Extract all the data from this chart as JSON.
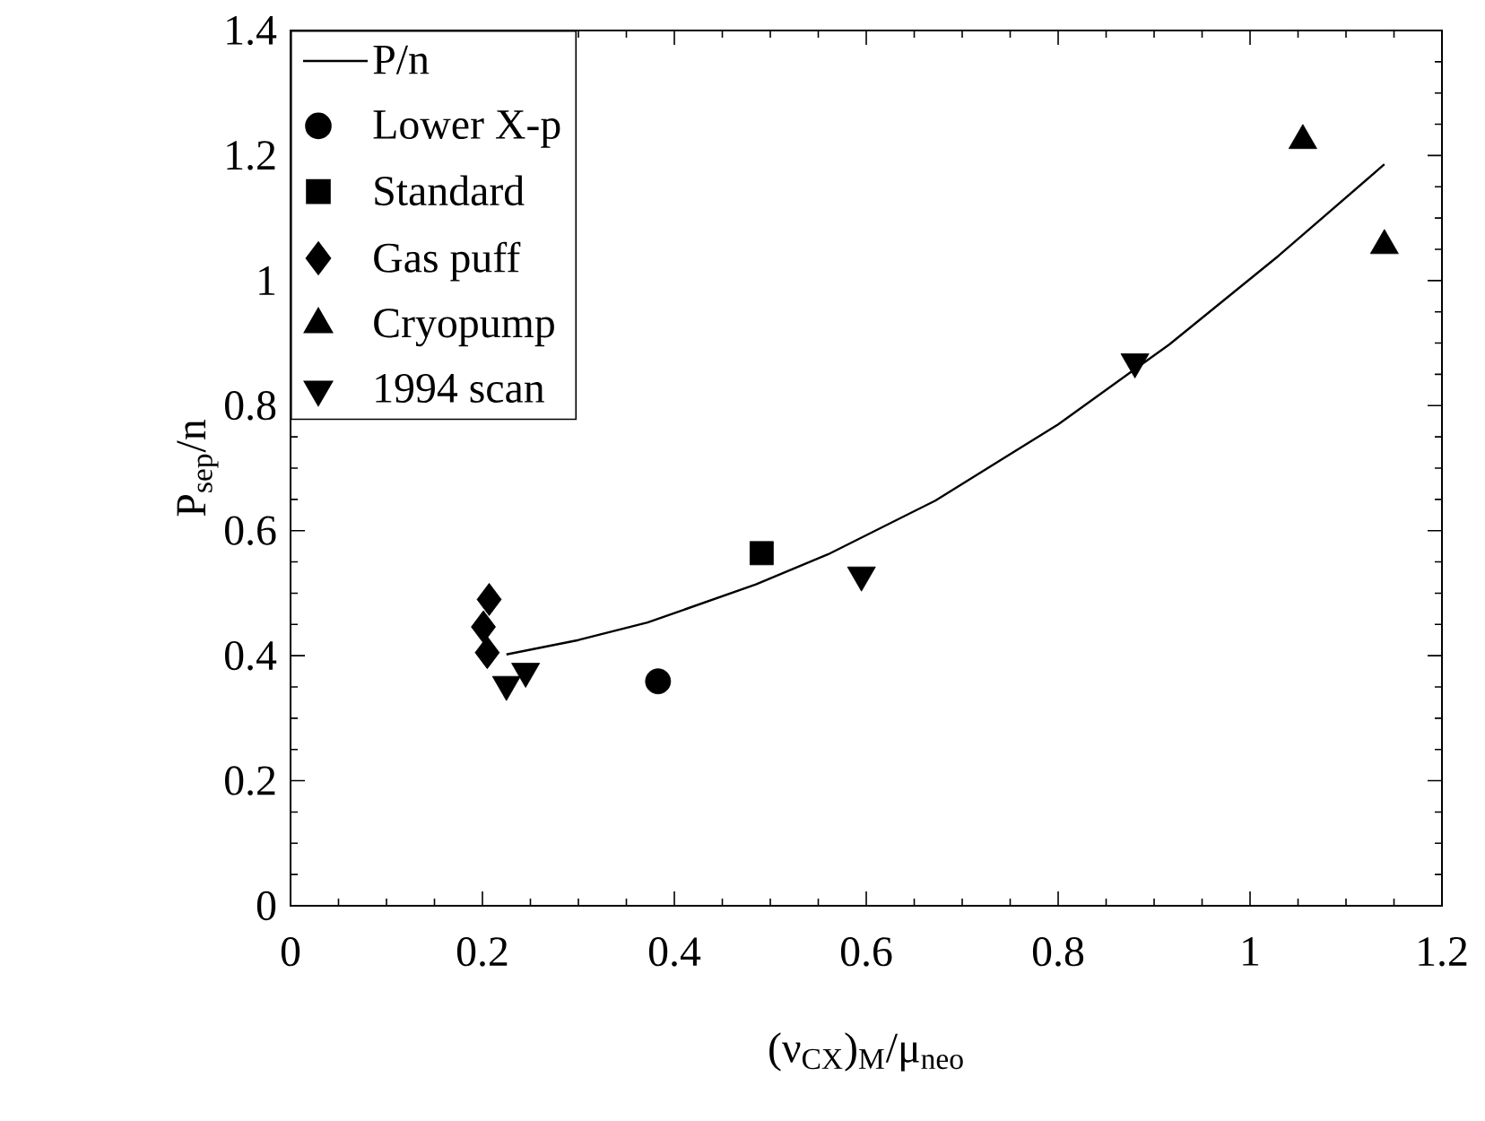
{
  "chart_data": {
    "type": "scatter",
    "xlabel": "(ν$_{CX}$)$_{M}$/μ$_{neo}$",
    "ylabel": "P$_{sep}$/n",
    "xlim": [
      0,
      1.2
    ],
    "ylim": [
      0,
      1.4
    ],
    "xticks": [
      0,
      0.2,
      0.4,
      0.6,
      0.8,
      1,
      1.2
    ],
    "yticks": [
      0,
      0.2,
      0.4,
      0.6,
      0.8,
      1,
      1.2,
      1.4
    ],
    "grid": false,
    "legend": "top left",
    "series": [
      {
        "name": "P/n",
        "type": "line",
        "color": "#000000",
        "marker": "none",
        "line_style": "solid",
        "x": [
          0.225,
          0.3,
          0.372,
          0.485,
          0.56,
          0.672,
          0.8,
          0.916,
          1.03,
          1.14
        ],
        "values": [
          0.402,
          0.425,
          0.453,
          0.514,
          0.562,
          0.648,
          0.77,
          0.898,
          1.04,
          1.186
        ]
      },
      {
        "name": "Lower X-p",
        "color": "#000000",
        "marker": "circle",
        "x": [
          0.383
        ],
        "values": [
          0.359
        ]
      },
      {
        "name": "Standard",
        "color": "#000000",
        "marker": "square",
        "x": [
          0.491
        ],
        "values": [
          0.564
        ]
      },
      {
        "name": "Gas puff",
        "color": "#000000",
        "marker": "diamond",
        "x": [
          0.207,
          0.201,
          0.205
        ],
        "values": [
          0.49,
          0.446,
          0.405
        ]
      },
      {
        "name": "Cryopump",
        "color": "#000000",
        "marker": "triangle",
        "x": [
          1.055,
          1.14
        ],
        "values": [
          1.224,
          1.056
        ]
      },
      {
        "name": "1994 scan",
        "color": "#000000",
        "marker": "triangle-down",
        "x": [
          0.225,
          0.245,
          0.595,
          0.88
        ],
        "values": [
          0.354,
          0.375,
          0.529,
          0.87
        ]
      }
    ]
  }
}
